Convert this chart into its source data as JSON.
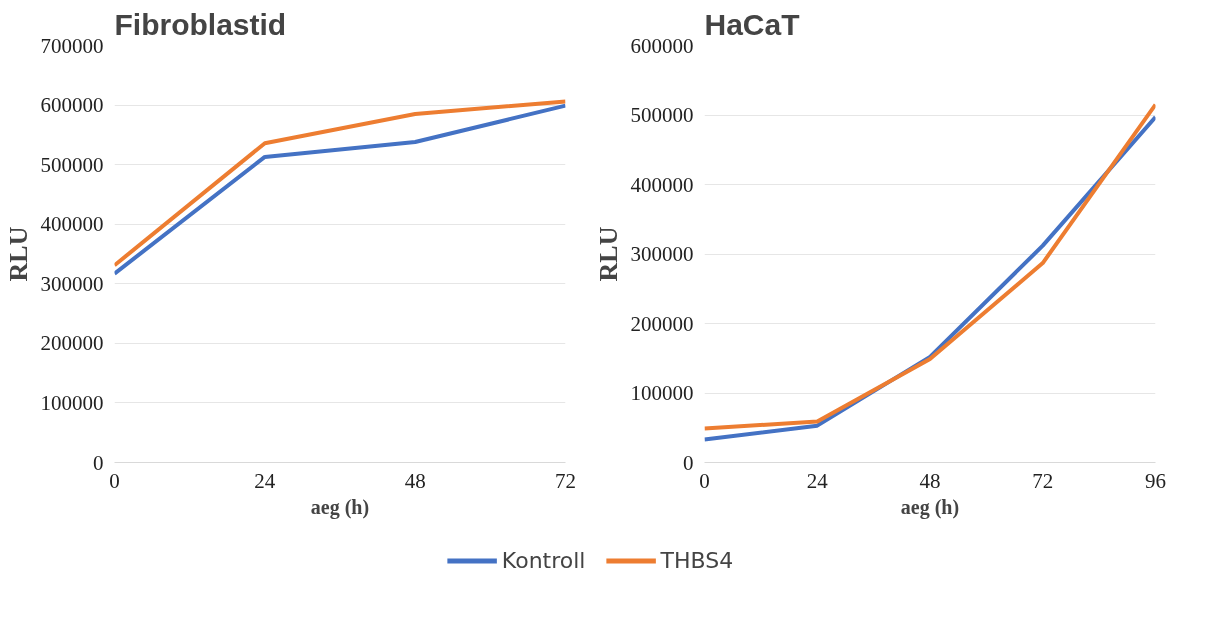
{
  "chart_data": [
    {
      "type": "line",
      "title": "Fibroblastid",
      "xlabel": "aeg (h)",
      "ylabel": "RLU",
      "x": [
        0,
        24,
        48,
        72
      ],
      "xlim": [
        0,
        72
      ],
      "xticks": [
        0,
        24,
        48,
        72
      ],
      "ylim": [
        0,
        700000
      ],
      "yticks": [
        0,
        100000,
        200000,
        300000,
        400000,
        500000,
        600000,
        700000
      ],
      "grid": "y",
      "legend": "bottom",
      "marker": "none",
      "line_style": "solid",
      "series": [
        {
          "name": "Kontroll",
          "color": "#4472c4",
          "values": [
            317000,
            513000,
            538000,
            599000
          ]
        },
        {
          "name": "THBS4",
          "color": "#ed7d31",
          "values": [
            331000,
            536000,
            585000,
            606000
          ]
        }
      ]
    },
    {
      "type": "line",
      "title": "HaCaT",
      "xlabel": "aeg (h)",
      "ylabel": "RLU",
      "x": [
        0,
        24,
        48,
        72,
        96
      ],
      "xlim": [
        0,
        96
      ],
      "xticks": [
        0,
        24,
        48,
        72,
        96
      ],
      "ylim": [
        0,
        600000
      ],
      "yticks": [
        0,
        100000,
        200000,
        300000,
        400000,
        500000,
        600000
      ],
      "grid": "y",
      "legend": "bottom",
      "marker": "none",
      "line_style": "solid",
      "series": [
        {
          "name": "Kontroll",
          "color": "#4472c4",
          "values": [
            33000,
            53000,
            152000,
            312000,
            497000
          ]
        },
        {
          "name": "THBS4",
          "color": "#ed7d31",
          "values": [
            49000,
            59000,
            149000,
            287000,
            515000
          ]
        }
      ]
    }
  ]
}
